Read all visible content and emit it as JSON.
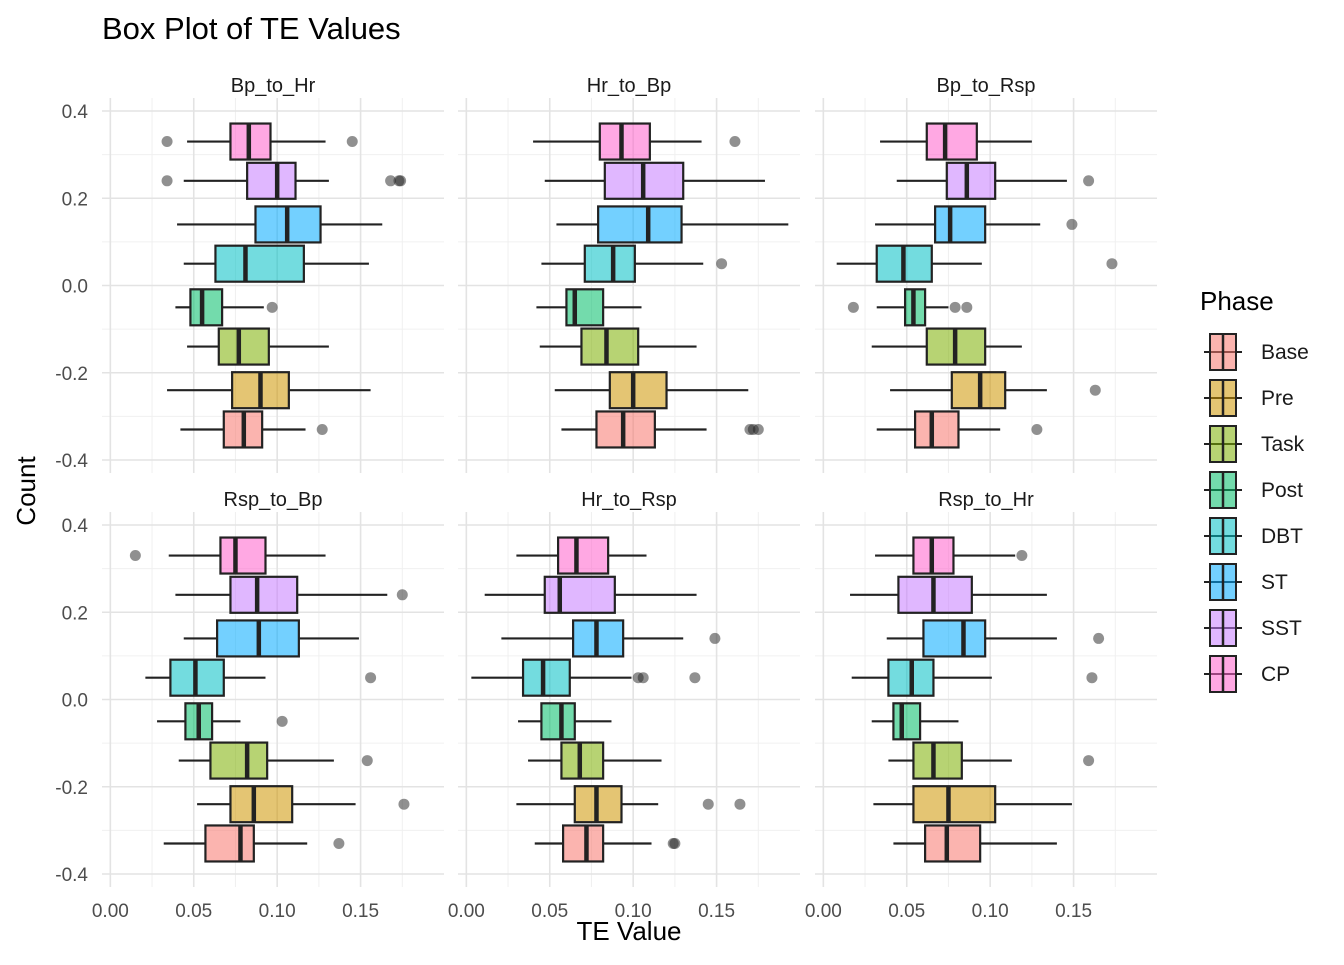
{
  "chart_data": {
    "type": "boxplot",
    "title": "Box Plot of TE Values",
    "xlabel": "TE Value",
    "ylabel": "Count",
    "xlim": [
      -0.005,
      0.2
    ],
    "ylim": [
      -0.4,
      0.4
    ],
    "x_ticks": [
      "0.00",
      "0.05",
      "0.10",
      "0.15"
    ],
    "x_tick_values": [
      0,
      0.05,
      0.1,
      0.15
    ],
    "y_ticks": [
      "0.4",
      "0.2",
      "0.0",
      "-0.2",
      "-0.4"
    ],
    "y_tick_values": [
      0.4,
      0.2,
      0.0,
      -0.2,
      -0.4
    ],
    "grid": true,
    "legend": {
      "title": "Phase",
      "placement": "right",
      "items": [
        {
          "name": "Base",
          "color": "#F8766D"
        },
        {
          "name": "Pre",
          "color": "#CD9600"
        },
        {
          "name": "Task",
          "color": "#7CAE00"
        },
        {
          "name": "Post",
          "color": "#00BE67"
        },
        {
          "name": "DBT",
          "color": "#00BFC4"
        },
        {
          "name": "ST",
          "color": "#00A9FF"
        },
        {
          "name": "SST",
          "color": "#C77CFF"
        },
        {
          "name": "CP",
          "color": "#FF61CC"
        }
      ]
    },
    "panels": [
      {
        "title": "Bp_to_Hr",
        "boxes": [
          {
            "phase": "CP",
            "y": 0.33,
            "min": 0.046,
            "q1": 0.072,
            "median": 0.083,
            "q3": 0.096,
            "max": 0.129,
            "outliers": [
              0.034,
              0.145
            ]
          },
          {
            "phase": "SST",
            "y": 0.24,
            "min": 0.044,
            "q1": 0.082,
            "median": 0.1,
            "q3": 0.111,
            "max": 0.131,
            "outliers": [
              0.034,
              0.168,
              0.173,
              0.174
            ]
          },
          {
            "phase": "ST",
            "y": 0.14,
            "min": 0.04,
            "q1": 0.087,
            "median": 0.106,
            "q3": 0.126,
            "max": 0.163,
            "outliers": []
          },
          {
            "phase": "DBT",
            "y": 0.05,
            "min": 0.044,
            "q1": 0.063,
            "median": 0.081,
            "q3": 0.116,
            "max": 0.155,
            "outliers": []
          },
          {
            "phase": "Post",
            "y": -0.05,
            "min": 0.039,
            "q1": 0.048,
            "median": 0.055,
            "q3": 0.067,
            "max": 0.092,
            "outliers": [
              0.097
            ]
          },
          {
            "phase": "Task",
            "y": -0.14,
            "min": 0.046,
            "q1": 0.065,
            "median": 0.077,
            "q3": 0.095,
            "max": 0.131,
            "outliers": []
          },
          {
            "phase": "Pre",
            "y": -0.24,
            "min": 0.034,
            "q1": 0.073,
            "median": 0.09,
            "q3": 0.107,
            "max": 0.156,
            "outliers": []
          },
          {
            "phase": "Base",
            "y": -0.33,
            "min": 0.042,
            "q1": 0.068,
            "median": 0.08,
            "q3": 0.091,
            "max": 0.117,
            "outliers": [
              0.127
            ]
          }
        ]
      },
      {
        "title": "Hr_to_Bp",
        "boxes": [
          {
            "phase": "CP",
            "y": 0.33,
            "min": 0.04,
            "q1": 0.08,
            "median": 0.093,
            "q3": 0.11,
            "max": 0.141,
            "outliers": [
              0.161
            ]
          },
          {
            "phase": "SST",
            "y": 0.24,
            "min": 0.047,
            "q1": 0.083,
            "median": 0.106,
            "q3": 0.13,
            "max": 0.179,
            "outliers": []
          },
          {
            "phase": "ST",
            "y": 0.14,
            "min": 0.054,
            "q1": 0.079,
            "median": 0.109,
            "q3": 0.129,
            "max": 0.193,
            "outliers": []
          },
          {
            "phase": "DBT",
            "y": 0.05,
            "min": 0.045,
            "q1": 0.071,
            "median": 0.088,
            "q3": 0.101,
            "max": 0.142,
            "outliers": [
              0.153
            ]
          },
          {
            "phase": "Post",
            "y": -0.05,
            "min": 0.042,
            "q1": 0.06,
            "median": 0.065,
            "q3": 0.082,
            "max": 0.105,
            "outliers": []
          },
          {
            "phase": "Task",
            "y": -0.14,
            "min": 0.044,
            "q1": 0.069,
            "median": 0.084,
            "q3": 0.103,
            "max": 0.138,
            "outliers": []
          },
          {
            "phase": "Pre",
            "y": -0.24,
            "min": 0.053,
            "q1": 0.086,
            "median": 0.1,
            "q3": 0.12,
            "max": 0.169,
            "outliers": []
          },
          {
            "phase": "Base",
            "y": -0.33,
            "min": 0.057,
            "q1": 0.078,
            "median": 0.094,
            "q3": 0.113,
            "max": 0.144,
            "outliers": [
              0.17,
              0.172,
              0.175
            ]
          }
        ]
      },
      {
        "title": "Bp_to_Rsp",
        "boxes": [
          {
            "phase": "CP",
            "y": 0.33,
            "min": 0.034,
            "q1": 0.062,
            "median": 0.073,
            "q3": 0.092,
            "max": 0.125,
            "outliers": []
          },
          {
            "phase": "SST",
            "y": 0.24,
            "min": 0.044,
            "q1": 0.074,
            "median": 0.086,
            "q3": 0.103,
            "max": 0.146,
            "outliers": [
              0.159
            ]
          },
          {
            "phase": "ST",
            "y": 0.14,
            "min": 0.031,
            "q1": 0.067,
            "median": 0.076,
            "q3": 0.097,
            "max": 0.13,
            "outliers": [
              0.149
            ]
          },
          {
            "phase": "DBT",
            "y": 0.05,
            "min": 0.008,
            "q1": 0.032,
            "median": 0.048,
            "q3": 0.065,
            "max": 0.095,
            "outliers": [
              0.173
            ]
          },
          {
            "phase": "Post",
            "y": -0.05,
            "min": 0.032,
            "q1": 0.049,
            "median": 0.054,
            "q3": 0.061,
            "max": 0.075,
            "outliers": [
              0.018,
              0.079,
              0.086
            ]
          },
          {
            "phase": "Task",
            "y": -0.14,
            "min": 0.029,
            "q1": 0.062,
            "median": 0.079,
            "q3": 0.097,
            "max": 0.119,
            "outliers": []
          },
          {
            "phase": "Pre",
            "y": -0.24,
            "min": 0.04,
            "q1": 0.077,
            "median": 0.094,
            "q3": 0.109,
            "max": 0.134,
            "outliers": [
              0.163
            ]
          },
          {
            "phase": "Base",
            "y": -0.33,
            "min": 0.032,
            "q1": 0.055,
            "median": 0.065,
            "q3": 0.081,
            "max": 0.106,
            "outliers": [
              0.128
            ]
          }
        ]
      },
      {
        "title": "Rsp_to_Bp",
        "boxes": [
          {
            "phase": "CP",
            "y": 0.33,
            "min": 0.035,
            "q1": 0.066,
            "median": 0.075,
            "q3": 0.093,
            "max": 0.129,
            "outliers": [
              0.015
            ]
          },
          {
            "phase": "SST",
            "y": 0.24,
            "min": 0.039,
            "q1": 0.072,
            "median": 0.088,
            "q3": 0.112,
            "max": 0.166,
            "outliers": [
              0.175
            ]
          },
          {
            "phase": "ST",
            "y": 0.14,
            "min": 0.044,
            "q1": 0.064,
            "median": 0.089,
            "q3": 0.113,
            "max": 0.149,
            "outliers": []
          },
          {
            "phase": "DBT",
            "y": 0.05,
            "min": 0.021,
            "q1": 0.036,
            "median": 0.051,
            "q3": 0.068,
            "max": 0.093,
            "outliers": [
              0.156
            ]
          },
          {
            "phase": "Post",
            "y": -0.05,
            "min": 0.028,
            "q1": 0.045,
            "median": 0.053,
            "q3": 0.061,
            "max": 0.078,
            "outliers": [
              0.103
            ]
          },
          {
            "phase": "Task",
            "y": -0.14,
            "min": 0.041,
            "q1": 0.06,
            "median": 0.082,
            "q3": 0.094,
            "max": 0.134,
            "outliers": [
              0.154
            ]
          },
          {
            "phase": "Pre",
            "y": -0.24,
            "min": 0.052,
            "q1": 0.072,
            "median": 0.086,
            "q3": 0.109,
            "max": 0.147,
            "outliers": [
              0.176
            ]
          },
          {
            "phase": "Base",
            "y": -0.33,
            "min": 0.032,
            "q1": 0.057,
            "median": 0.078,
            "q3": 0.086,
            "max": 0.118,
            "outliers": [
              0.137
            ]
          }
        ]
      },
      {
        "title": "Hr_to_Rsp",
        "boxes": [
          {
            "phase": "CP",
            "y": 0.33,
            "min": 0.03,
            "q1": 0.055,
            "median": 0.066,
            "q3": 0.085,
            "max": 0.108,
            "outliers": []
          },
          {
            "phase": "SST",
            "y": 0.24,
            "min": 0.011,
            "q1": 0.047,
            "median": 0.056,
            "q3": 0.089,
            "max": 0.138,
            "outliers": []
          },
          {
            "phase": "ST",
            "y": 0.14,
            "min": 0.021,
            "q1": 0.064,
            "median": 0.078,
            "q3": 0.094,
            "max": 0.13,
            "outliers": [
              0.149
            ]
          },
          {
            "phase": "DBT",
            "y": 0.05,
            "min": 0.003,
            "q1": 0.034,
            "median": 0.046,
            "q3": 0.062,
            "max": 0.099,
            "outliers": [
              0.103,
              0.106,
              0.137
            ]
          },
          {
            "phase": "Post",
            "y": -0.05,
            "min": 0.031,
            "q1": 0.045,
            "median": 0.057,
            "q3": 0.065,
            "max": 0.087,
            "outliers": []
          },
          {
            "phase": "Task",
            "y": -0.14,
            "min": 0.037,
            "q1": 0.057,
            "median": 0.068,
            "q3": 0.082,
            "max": 0.117,
            "outliers": []
          },
          {
            "phase": "Pre",
            "y": -0.24,
            "min": 0.03,
            "q1": 0.065,
            "median": 0.078,
            "q3": 0.093,
            "max": 0.115,
            "outliers": [
              0.145,
              0.164
            ]
          },
          {
            "phase": "Base",
            "y": -0.33,
            "min": 0.041,
            "q1": 0.058,
            "median": 0.072,
            "q3": 0.082,
            "max": 0.111,
            "outliers": [
              0.124,
              0.125
            ]
          }
        ]
      },
      {
        "title": "Rsp_to_Hr",
        "boxes": [
          {
            "phase": "CP",
            "y": 0.33,
            "min": 0.031,
            "q1": 0.054,
            "median": 0.065,
            "q3": 0.078,
            "max": 0.115,
            "outliers": [
              0.119
            ]
          },
          {
            "phase": "SST",
            "y": 0.24,
            "min": 0.016,
            "q1": 0.045,
            "median": 0.066,
            "q3": 0.089,
            "max": 0.134,
            "outliers": []
          },
          {
            "phase": "ST",
            "y": 0.14,
            "min": 0.038,
            "q1": 0.06,
            "median": 0.084,
            "q3": 0.097,
            "max": 0.14,
            "outliers": [
              0.165
            ]
          },
          {
            "phase": "DBT",
            "y": 0.05,
            "min": 0.017,
            "q1": 0.039,
            "median": 0.053,
            "q3": 0.066,
            "max": 0.101,
            "outliers": [
              0.161
            ]
          },
          {
            "phase": "Post",
            "y": -0.05,
            "min": 0.029,
            "q1": 0.042,
            "median": 0.047,
            "q3": 0.058,
            "max": 0.081,
            "outliers": []
          },
          {
            "phase": "Task",
            "y": -0.14,
            "min": 0.039,
            "q1": 0.054,
            "median": 0.066,
            "q3": 0.083,
            "max": 0.113,
            "outliers": [
              0.159
            ]
          },
          {
            "phase": "Pre",
            "y": -0.24,
            "min": 0.03,
            "q1": 0.054,
            "median": 0.075,
            "q3": 0.103,
            "max": 0.149,
            "outliers": []
          },
          {
            "phase": "Base",
            "y": -0.33,
            "min": 0.042,
            "q1": 0.061,
            "median": 0.074,
            "q3": 0.094,
            "max": 0.14,
            "outliers": []
          }
        ]
      }
    ]
  }
}
